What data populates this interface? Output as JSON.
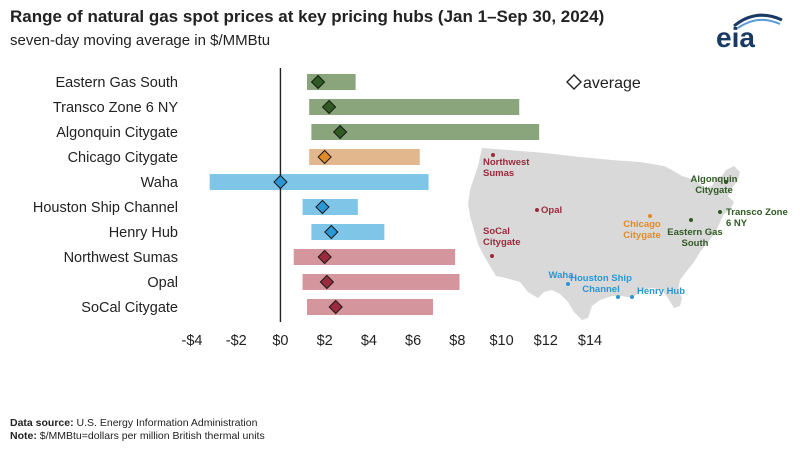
{
  "header": {
    "title": "Range of natural gas spot prices at key pricing hubs (Jan 1–Sep 30, 2024)",
    "subtitle": "seven-day moving average in $/MMBtu",
    "logo_text": "eia"
  },
  "footer": {
    "source_label": "Data source:",
    "source_value": "U.S. Energy Information Administration",
    "note_label": "Note:",
    "note_value": "$/MMBtu=dollars per million British thermal units"
  },
  "colors": {
    "east": "#8aa57c",
    "midwest": "#e3b78e",
    "south": "#7ec5e8",
    "west": "#d4959c",
    "east_marker": "#2f5a22",
    "midwest_marker": "#e08b28",
    "south_marker": "#2a96d4",
    "west_marker": "#9a2a3c",
    "map_fill": "#d9d9d9"
  },
  "chart_data": {
    "type": "bar",
    "orientation": "horizontal",
    "title": "Range of natural gas spot prices at key pricing hubs (Jan 1–Sep 30, 2024)",
    "subtitle": "seven-day moving average in $/MMBtu",
    "xlim": [
      -4,
      14
    ],
    "xticks": [
      "-$4",
      "-$2",
      "$0",
      "$2",
      "$4",
      "$6",
      "$8",
      "$10",
      "$12",
      "$14"
    ],
    "xtick_values": [
      -4,
      -2,
      0,
      2,
      4,
      6,
      8,
      10,
      12,
      14
    ],
    "legend": {
      "label": "average",
      "marker": "diamond",
      "placement": "top-right"
    },
    "grid": false,
    "categories": [
      "Eastern Gas South",
      "Transco Zone 6 NY",
      "Algonquin Citygate",
      "Chicago Citygate",
      "Waha",
      "Houston Ship Channel",
      "Henry Hub",
      "Northwest Sumas",
      "Opal",
      "SoCal Citygate"
    ],
    "hubs": [
      {
        "name": "Eastern Gas South",
        "min": 1.2,
        "max": 3.4,
        "avg": 1.7,
        "region": "east"
      },
      {
        "name": "Transco Zone 6 NY",
        "min": 1.3,
        "max": 10.8,
        "avg": 2.2,
        "region": "east"
      },
      {
        "name": "Algonquin Citygate",
        "min": 1.4,
        "max": 11.7,
        "avg": 2.7,
        "region": "east"
      },
      {
        "name": "Chicago Citygate",
        "min": 1.3,
        "max": 6.3,
        "avg": 2.0,
        "region": "midwest"
      },
      {
        "name": "Waha",
        "min": -3.2,
        "max": 6.7,
        "avg": 0.0,
        "region": "south"
      },
      {
        "name": "Houston Ship Channel",
        "min": 1.0,
        "max": 3.5,
        "avg": 1.9,
        "region": "south"
      },
      {
        "name": "Henry Hub",
        "min": 1.4,
        "max": 4.7,
        "avg": 2.3,
        "region": "south"
      },
      {
        "name": "Northwest Sumas",
        "min": 0.6,
        "max": 7.9,
        "avg": 2.0,
        "region": "west"
      },
      {
        "name": "Opal",
        "min": 1.0,
        "max": 8.1,
        "avg": 2.1,
        "region": "west"
      },
      {
        "name": "SoCal Citygate",
        "min": 1.2,
        "max": 6.9,
        "avg": 2.5,
        "region": "west"
      }
    ]
  },
  "map_labels": [
    {
      "key": "northwest-sumas",
      "lines": [
        "Northwest",
        "Sumas"
      ],
      "region": "west"
    },
    {
      "key": "opal",
      "lines": [
        "Opal"
      ],
      "region": "west"
    },
    {
      "key": "socal-citygate",
      "lines": [
        "SoCal",
        "Citygate"
      ],
      "region": "west"
    },
    {
      "key": "chicago-citygate",
      "lines": [
        "Chicago",
        "Citygate"
      ],
      "region": "midwest"
    },
    {
      "key": "algonquin-citygate",
      "lines": [
        "Algonquin",
        "Citygate"
      ],
      "region": "east"
    },
    {
      "key": "transco-zone-6-ny",
      "lines": [
        "Transco Zone",
        "6 NY"
      ],
      "region": "east"
    },
    {
      "key": "eastern-gas-south",
      "lines": [
        "Eastern Gas",
        "South"
      ],
      "region": "east"
    },
    {
      "key": "waha",
      "lines": [
        "Waha"
      ],
      "region": "south"
    },
    {
      "key": "houston-ship-channel",
      "lines": [
        "Houston Ship",
        "Channel"
      ],
      "region": "south"
    },
    {
      "key": "henry-hub",
      "lines": [
        "Henry Hub"
      ],
      "region": "south"
    }
  ]
}
